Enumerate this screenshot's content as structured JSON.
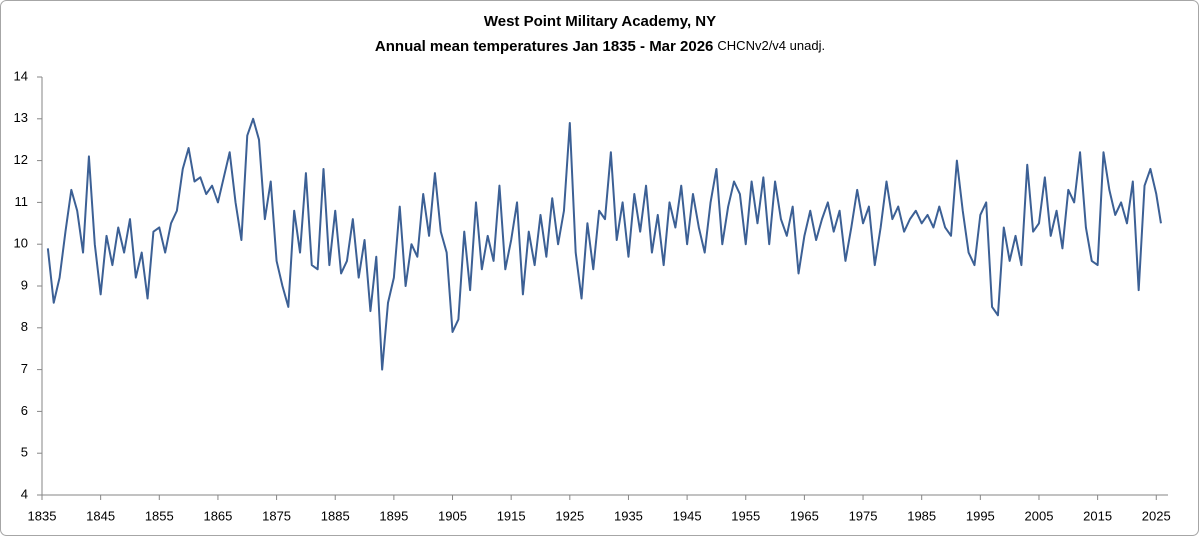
{
  "chart_data": {
    "type": "line",
    "title": "West Point Military Academy, NY",
    "subtitle": "Annual  mean temperatures Jan 1835 - Mar 2026",
    "note": "CHCNv2/v4 unadj.",
    "color": "#3c6095",
    "xlim": [
      1835,
      2027
    ],
    "xticks": [
      1835,
      1845,
      1855,
      1865,
      1875,
      1885,
      1895,
      1905,
      1915,
      1925,
      1935,
      1945,
      1955,
      1965,
      1975,
      1985,
      1995,
      2005,
      2015,
      2025
    ],
    "ylim": [
      4,
      14
    ],
    "yticks": [
      4,
      5,
      6,
      7,
      8,
      9,
      10,
      11,
      12,
      13,
      14
    ],
    "grid": false,
    "x": [
      1836,
      1837,
      1838,
      1839,
      1840,
      1841,
      1842,
      1843,
      1844,
      1845,
      1846,
      1847,
      1848,
      1849,
      1850,
      1851,
      1852,
      1853,
      1854,
      1855,
      1856,
      1857,
      1858,
      1859,
      1860,
      1861,
      1862,
      1863,
      1864,
      1865,
      1866,
      1867,
      1868,
      1869,
      1870,
      1871,
      1872,
      1873,
      1874,
      1875,
      1876,
      1877,
      1878,
      1879,
      1880,
      1881,
      1882,
      1883,
      1884,
      1885,
      1886,
      1887,
      1888,
      1889,
      1890,
      1891,
      1892,
      1893,
      1894,
      1895,
      1896,
      1897,
      1898,
      1899,
      1900,
      1901,
      1902,
      1903,
      1904,
      1905,
      1906,
      1907,
      1908,
      1909,
      1910,
      1911,
      1912,
      1913,
      1914,
      1915,
      1916,
      1917,
      1918,
      1919,
      1920,
      1921,
      1922,
      1923,
      1924,
      1925,
      1926,
      1927,
      1928,
      1929,
      1930,
      1931,
      1932,
      1933,
      1934,
      1935,
      1936,
      1937,
      1938,
      1939,
      1940,
      1941,
      1942,
      1943,
      1944,
      1945,
      1946,
      1947,
      1948,
      1949,
      1950,
      1951,
      1952,
      1953,
      1954,
      1955,
      1956,
      1957,
      1958,
      1959,
      1960,
      1961,
      1962,
      1963,
      1964,
      1965,
      1966,
      1967,
      1968,
      1969,
      1970,
      1971,
      1972,
      1973,
      1974,
      1975,
      1976,
      1977,
      1978,
      1979,
      1980,
      1981,
      1982,
      1983,
      1984,
      1985,
      1986,
      1987,
      1988,
      1989,
      1990,
      1991,
      1992,
      1993,
      1994,
      1995,
      1996,
      1997,
      1998,
      1999,
      2000,
      2001,
      2002,
      2003,
      2004,
      2005,
      2006,
      2007,
      2008,
      2009,
      2010,
      2011,
      2012,
      2013,
      2014,
      2015,
      2016,
      2017,
      2018,
      2019,
      2020,
      2021,
      2022,
      2023,
      2024,
      2025,
      2025.8
    ],
    "values": [
      9.9,
      8.6,
      9.2,
      10.3,
      11.3,
      10.8,
      9.8,
      12.1,
      10.0,
      8.8,
      10.2,
      9.5,
      10.4,
      9.8,
      10.6,
      9.2,
      9.8,
      8.7,
      10.3,
      10.4,
      9.8,
      10.5,
      10.8,
      11.8,
      12.3,
      11.5,
      11.6,
      11.2,
      11.4,
      11.0,
      11.6,
      12.2,
      11.0,
      10.1,
      12.6,
      13.0,
      12.5,
      10.6,
      11.5,
      9.6,
      9.0,
      8.5,
      10.8,
      9.8,
      11.7,
      9.5,
      9.4,
      11.8,
      9.5,
      10.8,
      9.3,
      9.6,
      10.6,
      9.2,
      10.1,
      8.4,
      9.7,
      7.0,
      8.6,
      9.2,
      10.9,
      9.0,
      10.0,
      9.7,
      11.2,
      10.2,
      11.7,
      10.3,
      9.8,
      7.9,
      8.2,
      10.3,
      8.9,
      11.0,
      9.4,
      10.2,
      9.6,
      11.4,
      9.4,
      10.1,
      11.0,
      8.8,
      10.3,
      9.5,
      10.7,
      9.7,
      11.1,
      10.0,
      10.8,
      12.9,
      9.8,
      8.7,
      10.5,
      9.4,
      10.8,
      10.6,
      12.2,
      10.1,
      11.0,
      9.7,
      11.2,
      10.3,
      11.4,
      9.8,
      10.7,
      9.5,
      11.0,
      10.4,
      11.4,
      10.0,
      11.2,
      10.4,
      9.8,
      11.0,
      11.8,
      10.0,
      10.9,
      11.5,
      11.2,
      10.0,
      11.5,
      10.5,
      11.6,
      10.0,
      11.5,
      10.6,
      10.2,
      10.9,
      9.3,
      10.2,
      10.8,
      10.1,
      10.6,
      11.0,
      10.3,
      10.8,
      9.6,
      10.4,
      11.3,
      10.5,
      10.9,
      9.5,
      10.4,
      11.5,
      10.6,
      10.9,
      10.3,
      10.6,
      10.8,
      10.5,
      10.7,
      10.4,
      10.9,
      10.4,
      10.2,
      12.0,
      10.8,
      9.8,
      9.5,
      10.7,
      11.0,
      8.5,
      8.3,
      10.4,
      9.6,
      10.2,
      9.5,
      11.9,
      10.3,
      10.5,
      11.6,
      10.2,
      10.8,
      9.9,
      11.3,
      11.0,
      12.2,
      10.4,
      9.6,
      9.5,
      12.2,
      11.3,
      10.7,
      11.0,
      10.5,
      11.5,
      8.9,
      11.4,
      11.8,
      11.2,
      10.5
    ]
  }
}
